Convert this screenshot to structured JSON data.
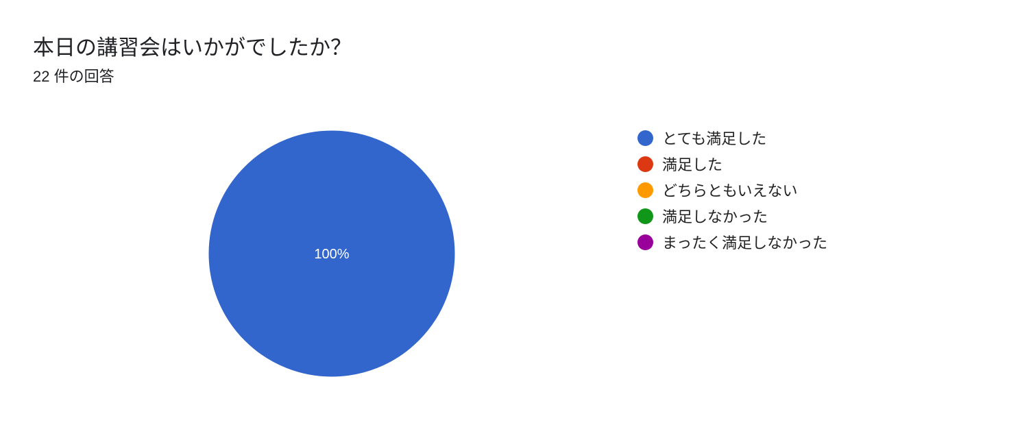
{
  "header": {
    "title": "本日の講習会はいかがでしたか？",
    "responses": "22 件の回答"
  },
  "chart_data": {
    "type": "pie",
    "title": "本日の講習会はいかがでしたか？",
    "categories": [
      "とても満足した",
      "満足した",
      "どちらともいえない",
      "満足しなかった",
      "まったく満足しなかった"
    ],
    "values": [
      100,
      0,
      0,
      0,
      0
    ],
    "data_labels": [
      "100%",
      "",
      "",
      "",
      ""
    ],
    "colors": [
      "#3366cc",
      "#dc3912",
      "#ff9900",
      "#109618",
      "#990099"
    ],
    "legend_position": "right"
  }
}
